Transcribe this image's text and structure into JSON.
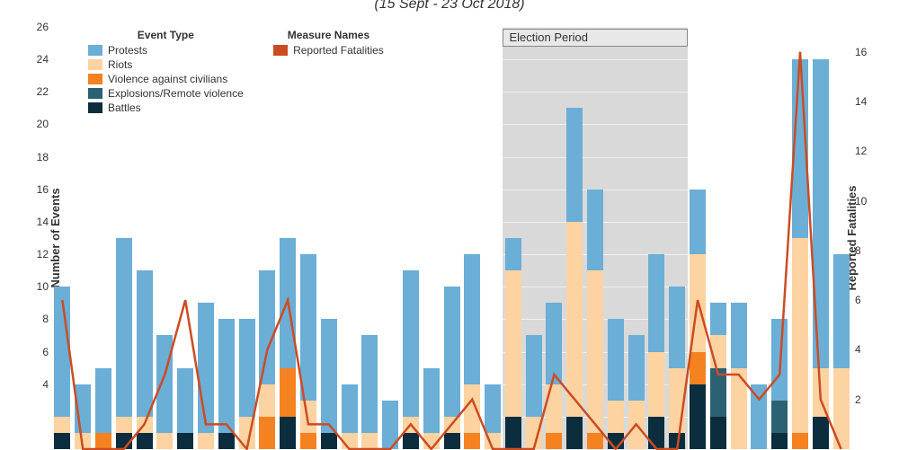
{
  "subtitle": "(15 Sept - 23 Oct 2018)",
  "axis_left_label": "Number of Events",
  "axis_right_label": "Reported Fatalities",
  "election_label": "Election Period",
  "legend": {
    "event_title": "Event Type",
    "measure_title": "Measure Names",
    "items": [
      {
        "label": "Protests",
        "color": "#6baed6"
      },
      {
        "label": "Riots",
        "color": "#fcd3a1"
      },
      {
        "label": "Violence against civilians",
        "color": "#f58220"
      },
      {
        "label": "Explosions/Remote violence",
        "color": "#2b6173"
      },
      {
        "label": "Battles",
        "color": "#0b2d3d"
      }
    ],
    "measure_item": {
      "label": "Reported Fatalities",
      "color": "#cc4c22"
    }
  },
  "y_left": {
    "min": 0,
    "max": 26,
    "step": 2
  },
  "y_right": {
    "min": 0,
    "max": 17,
    "ticks": [
      2,
      4,
      6,
      8,
      10,
      12,
      14,
      16
    ]
  },
  "categories": {
    "count": 39
  },
  "election_period": {
    "start": 22,
    "end": 30
  },
  "colors": {
    "protests": "#6baed6",
    "riots": "#fcd3a1",
    "vac": "#f58220",
    "erv": "#2b6173",
    "battles": "#0b2d3d",
    "fatal_line": "#cc4c22",
    "shade": "#d9d9d9"
  },
  "stacks": [
    {
      "protests": 8,
      "riots": 1,
      "vac": 0,
      "erv": 0,
      "battles": 1
    },
    {
      "protests": 3,
      "riots": 1,
      "vac": 0,
      "erv": 0,
      "battles": 0
    },
    {
      "protests": 4,
      "riots": 0,
      "vac": 1,
      "erv": 0,
      "battles": 0
    },
    {
      "protests": 11,
      "riots": 1,
      "vac": 0,
      "erv": 0,
      "battles": 1
    },
    {
      "protests": 9,
      "riots": 1,
      "vac": 0,
      "erv": 0,
      "battles": 1
    },
    {
      "protests": 6,
      "riots": 1,
      "vac": 0,
      "erv": 0,
      "battles": 0
    },
    {
      "protests": 4,
      "riots": 0,
      "vac": 0,
      "erv": 0,
      "battles": 1
    },
    {
      "protests": 8,
      "riots": 1,
      "vac": 0,
      "erv": 0,
      "battles": 0
    },
    {
      "protests": 7,
      "riots": 0,
      "vac": 0,
      "erv": 0,
      "battles": 1
    },
    {
      "protests": 6,
      "riots": 2,
      "vac": 0,
      "erv": 0,
      "battles": 0
    },
    {
      "protests": 7,
      "riots": 2,
      "vac": 2,
      "erv": 0,
      "battles": 0
    },
    {
      "protests": 8,
      "riots": 0,
      "vac": 3,
      "erv": 0,
      "battles": 2
    },
    {
      "protests": 9,
      "riots": 2,
      "vac": 1,
      "erv": 0,
      "battles": 0
    },
    {
      "protests": 7,
      "riots": 0,
      "vac": 0,
      "erv": 0,
      "battles": 1
    },
    {
      "protests": 3,
      "riots": 1,
      "vac": 0,
      "erv": 0,
      "battles": 0
    },
    {
      "protests": 6,
      "riots": 1,
      "vac": 0,
      "erv": 0,
      "battles": 0
    },
    {
      "protests": 3,
      "riots": 0,
      "vac": 0,
      "erv": 0,
      "battles": 0
    },
    {
      "protests": 9,
      "riots": 1,
      "vac": 0,
      "erv": 0,
      "battles": 1
    },
    {
      "protests": 4,
      "riots": 1,
      "vac": 0,
      "erv": 0,
      "battles": 0
    },
    {
      "protests": 8,
      "riots": 1,
      "vac": 0,
      "erv": 0,
      "battles": 1
    },
    {
      "protests": 8,
      "riots": 3,
      "vac": 1,
      "erv": 0,
      "battles": 0
    },
    {
      "protests": 3,
      "riots": 1,
      "vac": 0,
      "erv": 0,
      "battles": 0
    },
    {
      "protests": 2,
      "riots": 9,
      "vac": 0,
      "erv": 0,
      "battles": 2
    },
    {
      "protests": 5,
      "riots": 2,
      "vac": 0,
      "erv": 0,
      "battles": 0
    },
    {
      "protests": 5,
      "riots": 3,
      "vac": 1,
      "erv": 0,
      "battles": 0
    },
    {
      "protests": 7,
      "riots": 12,
      "vac": 0,
      "erv": 0,
      "battles": 2
    },
    {
      "protests": 5,
      "riots": 10,
      "vac": 1,
      "erv": 0,
      "battles": 0
    },
    {
      "protests": 5,
      "riots": 2,
      "vac": 0,
      "erv": 0,
      "battles": 1
    },
    {
      "protests": 4,
      "riots": 3,
      "vac": 0,
      "erv": 0,
      "battles": 0
    },
    {
      "protests": 6,
      "riots": 4,
      "vac": 0,
      "erv": 0,
      "battles": 2
    },
    {
      "protests": 5,
      "riots": 4,
      "vac": 0,
      "erv": 0,
      "battles": 1
    },
    {
      "protests": 4,
      "riots": 6,
      "vac": 2,
      "erv": 0,
      "battles": 4
    },
    {
      "protests": 2,
      "riots": 2,
      "vac": 0,
      "erv": 3,
      "battles": 2
    },
    {
      "protests": 4,
      "riots": 5,
      "vac": 0,
      "erv": 0,
      "battles": 0
    },
    {
      "protests": 4,
      "riots": 0,
      "vac": 0,
      "erv": 0,
      "battles": 0
    },
    {
      "protests": 5,
      "riots": 0,
      "vac": 0,
      "erv": 2,
      "battles": 1
    },
    {
      "protests": 11,
      "riots": 12,
      "vac": 1,
      "erv": 0,
      "battles": 0
    },
    {
      "protests": 19,
      "riots": 3,
      "vac": 0,
      "erv": 0,
      "battles": 2
    },
    {
      "protests": 7,
      "riots": 5,
      "vac": 0,
      "erv": 0,
      "battles": 0
    }
  ],
  "fatalities": [
    6,
    0,
    0,
    0,
    1,
    3,
    6,
    1,
    1,
    0,
    4,
    6,
    1,
    1,
    0,
    0,
    0,
    1,
    0,
    1,
    2,
    0,
    0,
    0,
    3,
    2,
    1,
    0,
    1,
    0,
    0,
    6,
    3,
    3,
    2,
    3,
    16,
    2,
    0
  ]
}
